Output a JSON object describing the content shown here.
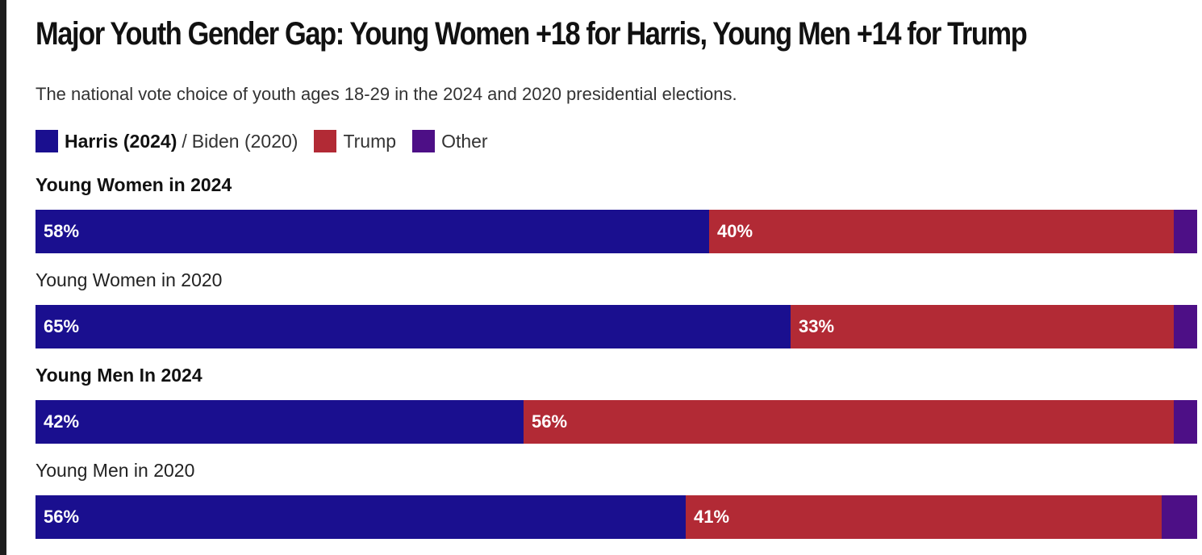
{
  "colors": {
    "harris_biden": "#1a0f8f",
    "trump": "#b22a35",
    "other": "#4d0f86"
  },
  "chart_data": {
    "type": "bar",
    "orientation": "horizontal",
    "stacked": true,
    "title": "Major Youth Gender Gap: Young Women +18 for Harris, Young Men +14 for Trump",
    "subtitle": "The national vote choice of youth ages 18-29 in the 2024 and 2020 presidential elections.",
    "legend": {
      "placement": "top-left",
      "items": [
        {
          "label_bold": "Harris (2024)",
          "separator": "/",
          "label": "Biden (2020)",
          "color_key": "harris_biden"
        },
        {
          "label": "Trump",
          "color_key": "trump"
        },
        {
          "label": "Other",
          "color_key": "other"
        }
      ]
    },
    "categories": [
      "Young Women in 2024",
      "Young Women in 2020",
      "Young Men In 2024",
      "Young Men in 2020"
    ],
    "category_bold": [
      true,
      false,
      true,
      false
    ],
    "series": [
      {
        "name": "Harris (2024) / Biden (2020)",
        "color_key": "harris_biden",
        "values": [
          58,
          65,
          42,
          56
        ],
        "labels": [
          "58%",
          "65%",
          "42%",
          "56%"
        ]
      },
      {
        "name": "Trump",
        "color_key": "trump",
        "values": [
          40,
          33,
          56,
          41
        ],
        "labels": [
          "40%",
          "33%",
          "56%",
          "41%"
        ]
      },
      {
        "name": "Other",
        "color_key": "other",
        "values": [
          2,
          2,
          2,
          3
        ],
        "labels": [
          "",
          "",
          "",
          ""
        ]
      }
    ],
    "xlim": [
      0,
      100
    ],
    "grid": false
  }
}
